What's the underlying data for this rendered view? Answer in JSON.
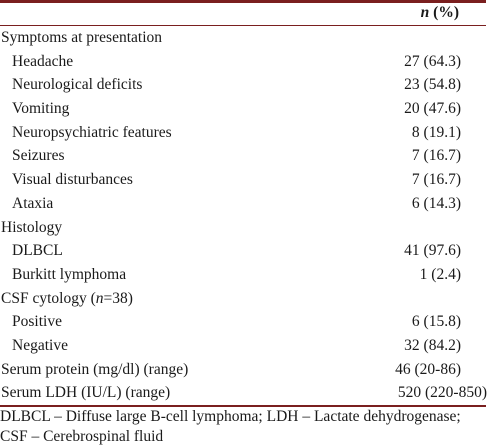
{
  "table": {
    "header": {
      "n_italic": "n",
      "pct": " (%)"
    },
    "rows": [
      {
        "label": "Symptoms at presentation",
        "value": "",
        "indent": false
      },
      {
        "label": "Headache",
        "value": "27 (64.3)",
        "indent": true
      },
      {
        "label": "Neurological deficits",
        "value": "23 (54.8)",
        "indent": true
      },
      {
        "label": "Vomiting",
        "value": "20 (47.6)",
        "indent": true
      },
      {
        "label": "Neuropsychiatric features",
        "value": "8 (19.1)",
        "indent": true
      },
      {
        "label": "Seizures",
        "value": "7 (16.7)",
        "indent": true
      },
      {
        "label": "Visual disturbances",
        "value": "7 (16.7)",
        "indent": true
      },
      {
        "label": "Ataxia",
        "value": "6 (14.3)",
        "indent": true
      },
      {
        "label": "Histology",
        "value": "",
        "indent": false
      },
      {
        "label": "DLBCL",
        "value": "41 (97.6)",
        "indent": true
      },
      {
        "label": "Burkitt lymphoma",
        "value": "1 (2.4)",
        "indent": true
      },
      {
        "label_prefix": "CSF cytology (",
        "label_italic": "n",
        "label_suffix": "=38)",
        "value": "",
        "indent": false
      },
      {
        "label": "Positive",
        "value": "6 (15.8)",
        "indent": true
      },
      {
        "label": "Negative",
        "value": "32 (84.2)",
        "indent": true
      },
      {
        "label": "Serum protein (mg/dl) (range)",
        "value": "46 (20-86)",
        "indent": false
      },
      {
        "label": "Serum LDH (IU/L) (range)",
        "value": "520 (220-850)",
        "indent": false
      }
    ],
    "footnote": "DLBCL – Diffuse large B-cell lymphoma; LDH – Lactate dehydrogenase; CSF – Cerebrospinal fluid"
  }
}
